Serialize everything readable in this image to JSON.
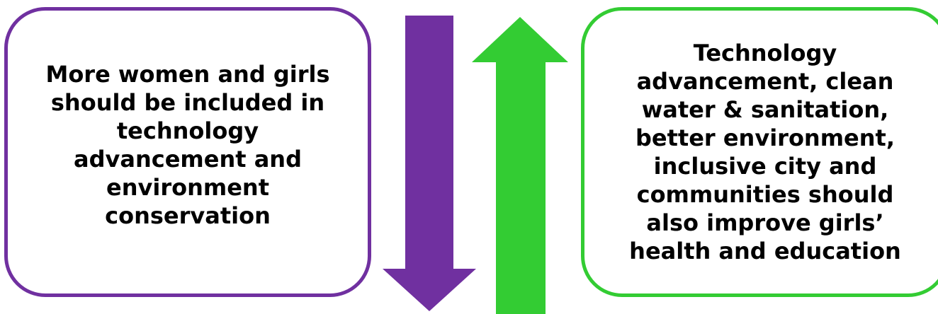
{
  "colors": {
    "purple": "#7030a0",
    "green": "#33cc33"
  },
  "left_box": {
    "text": "More women and girls should be included in technology advancement and environment conservation"
  },
  "right_box": {
    "text": "Technology advancement, clean water & sanitation, better environment, inclusive city and communities should also improve girls’ health and education"
  },
  "arrows": [
    {
      "direction": "down",
      "color": "purple"
    },
    {
      "direction": "up",
      "color": "green"
    }
  ]
}
